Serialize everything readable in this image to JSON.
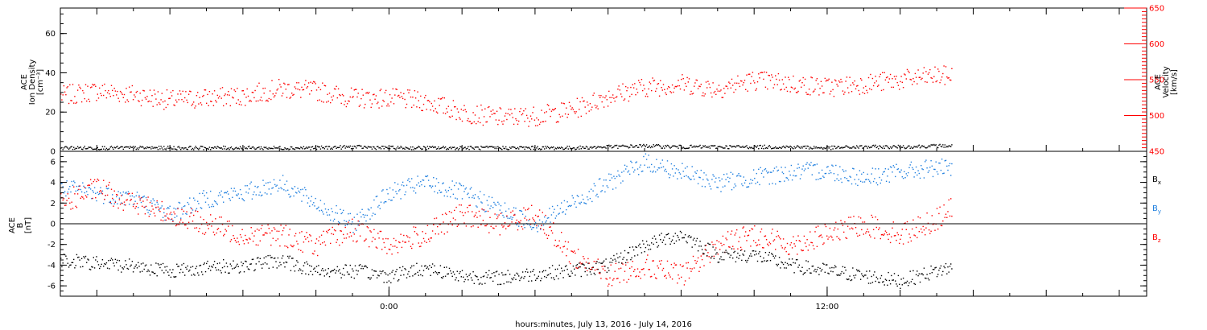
{
  "figure": {
    "xlabel": "hours:minutes, July 13, 2016 - July 14, 2016",
    "xlim_hours": [
      -9,
      20.75
    ],
    "x_ticks": [
      {
        "hour": 0,
        "label": "0:00"
      },
      {
        "hour": 12,
        "label": "12:00"
      }
    ],
    "colors": {
      "black": "#000000",
      "red": "#ff0000",
      "blue": "#1f7fdf"
    }
  },
  "chart_data": [
    {
      "type": "scatter",
      "panel": "top",
      "ylabel_lines": [
        "ACE",
        "Ion Density",
        "[cm⁻³]"
      ],
      "ylim": [
        0,
        73
      ],
      "y_ticks": [
        0,
        20,
        40,
        60
      ],
      "y2label_lines": [
        "ACE",
        "Velocity",
        "[km/s]"
      ],
      "y2lim": [
        450,
        650
      ],
      "y2_ticks": [
        450,
        500,
        550,
        600,
        650
      ],
      "series": [
        {
          "axis": "left",
          "color": "#000000",
          "x_hours": [
            -9,
            -8,
            -7,
            -6,
            -5,
            -4,
            -3,
            -2,
            -1,
            0,
            1,
            2,
            3,
            4,
            5,
            6,
            7,
            8,
            9,
            10,
            11,
            12,
            13,
            14,
            15,
            15.4
          ],
          "y": [
            2,
            2,
            2,
            2,
            2,
            2,
            2,
            2,
            2.5,
            2,
            2,
            2,
            2,
            2,
            2,
            2.5,
            3,
            2.5,
            2.5,
            2.5,
            2.5,
            2,
            2.5,
            2.5,
            3,
            3
          ]
        },
        {
          "axis": "right",
          "color": "#ff0000",
          "x_hours": [
            -9,
            -8,
            -7,
            -6,
            -5,
            -4,
            -3,
            -2,
            -1,
            0,
            1,
            2,
            3,
            4,
            5,
            6,
            7,
            8,
            9,
            10,
            11,
            12,
            13,
            14,
            15,
            15.4
          ],
          "y": [
            528,
            535,
            530,
            522,
            525,
            528,
            538,
            535,
            525,
            525,
            520,
            505,
            498,
            500,
            508,
            528,
            540,
            545,
            538,
            550,
            545,
            540,
            545,
            550,
            556,
            556
          ]
        }
      ]
    },
    {
      "type": "scatter",
      "panel": "bottom",
      "ylabel_lines": [
        "ACE",
        "B",
        "[nT]"
      ],
      "ylim": [
        -7,
        7
      ],
      "y_ticks": [
        -6,
        -4,
        -2,
        0,
        2,
        4,
        6
      ],
      "zero_line": true,
      "series": [
        {
          "name": "Bx",
          "color": "#000000",
          "x_hours": [
            -9,
            -8,
            -7,
            -6,
            -5,
            -4,
            -3,
            -2,
            -1,
            0,
            1,
            2,
            3,
            4,
            5,
            6,
            7,
            8,
            9,
            10,
            11,
            12,
            13,
            14,
            15,
            15.4
          ],
          "y": [
            -3.5,
            -3.8,
            -4,
            -4.5,
            -4.2,
            -4,
            -3.5,
            -4.5,
            -4.5,
            -5,
            -4.2,
            -5,
            -5.2,
            -4.8,
            -4.5,
            -4,
            -2,
            -1,
            -3,
            -3,
            -4,
            -4.5,
            -5,
            -5.5,
            -4.5,
            -4.2
          ]
        },
        {
          "name": "By",
          "color": "#1f7fdf",
          "x_hours": [
            -9,
            -8,
            -7,
            -6,
            -5,
            -4,
            -3,
            -2,
            -1,
            0,
            1,
            2,
            3,
            4,
            5,
            6,
            7,
            8,
            9,
            10,
            11,
            12,
            13,
            14,
            15,
            15.4
          ],
          "y": [
            3.5,
            3,
            2.5,
            1,
            2.5,
            3,
            4,
            2,
            0,
            3,
            4,
            3,
            1.5,
            0,
            2,
            4,
            6,
            5,
            4,
            4.5,
            5,
            5.2,
            4.5,
            5,
            5.5,
            5.2
          ]
        },
        {
          "name": "Bz",
          "color": "#ff0000",
          "x_hours": [
            -9,
            -8,
            -7,
            -6,
            -5,
            -4,
            -3,
            -2,
            -1,
            0,
            1,
            2,
            3,
            4,
            5,
            6,
            7,
            8,
            9,
            10,
            11,
            12,
            13,
            14,
            15,
            15.4
          ],
          "y": [
            2,
            3.5,
            2,
            1,
            0,
            -1,
            -1,
            -2,
            -0.5,
            -2,
            -1,
            1,
            0,
            1,
            -3,
            -5,
            -4,
            -5,
            -2,
            -1,
            -2,
            -1,
            0,
            -1,
            0.5,
            1.5
          ]
        }
      ],
      "legend": {
        "placement": "right",
        "items": [
          {
            "base": "B",
            "sub": "x",
            "color": "#000000"
          },
          {
            "base": "B",
            "sub": "y",
            "color": "#1f7fdf"
          },
          {
            "base": "B",
            "sub": "z",
            "color": "#ff0000"
          }
        ]
      }
    }
  ]
}
